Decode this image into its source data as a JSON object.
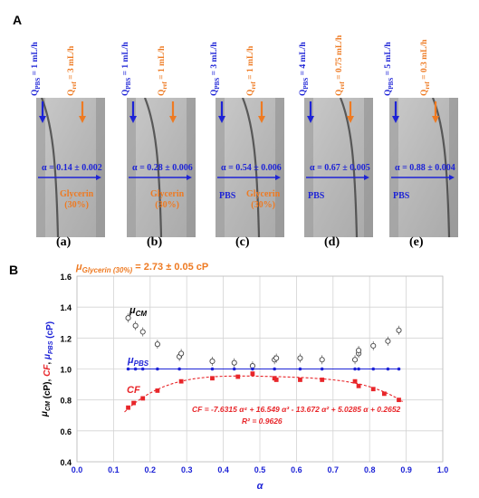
{
  "figure": {
    "panel_a_letter": "A",
    "panel_b_letter": "B"
  },
  "panels": [
    {
      "sub": "(a)",
      "q_pbs": "Q_PBS = 1 mL/h",
      "q_ref": "Q_ref = 3 mL/h",
      "alpha": "α = 0.14 ± 0.002",
      "pbs_label": "",
      "ref_label": "Glycerin\n(30%)"
    },
    {
      "sub": "(b)",
      "q_pbs": "Q_PBS = 1 mL/h",
      "q_ref": "Q_ref = 1 mL/h",
      "alpha": "α = 0.28 ± 0.006",
      "pbs_label": "",
      "ref_label": "Glycerin\n(30%)"
    },
    {
      "sub": "(c)",
      "q_pbs": "Q_PBS = 3 mL/h",
      "q_ref": "Q_ref = 1 mL/h",
      "alpha": "α = 0.54 ± 0.006",
      "pbs_label": "PBS",
      "ref_label": "Glycerin\n(30%)"
    },
    {
      "sub": "(d)",
      "q_pbs": "Q_PBS = 4 mL/h",
      "q_ref": "Q_ref = 0.75 mL/h",
      "alpha": "α = 0.67 ± 0.005",
      "pbs_label": "PBS",
      "ref_label": ""
    },
    {
      "sub": "(e)",
      "q_pbs": "Q_PBS = 5 mL/h",
      "q_ref": "Q_ref = 0.3 mL/h",
      "alpha": "α = 0.88 ± 0.004",
      "pbs_label": "PBS",
      "ref_label": ""
    }
  ],
  "colors": {
    "blue": "#1d23d6",
    "orange": "#ee7a22",
    "red": "#e8262a",
    "black": "#000000"
  },
  "chart_data": {
    "type": "scatter",
    "title": "μGlycerin (30%) = 2.73 ± 0.05 cP",
    "xlabel": "α",
    "ylabel": "μCM (cP), CF, μPBS (cP)",
    "xlim": [
      0.0,
      1.0
    ],
    "ylim": [
      0.4,
      1.6
    ],
    "xticks": [
      "0.0",
      "0.1",
      "0.2",
      "0.3",
      "0.4",
      "0.5",
      "0.6",
      "0.7",
      "0.8",
      "0.9",
      "1.0"
    ],
    "yticks": [
      "0.4",
      "0.6",
      "0.8",
      "1.0",
      "1.2",
      "1.4",
      "1.6"
    ],
    "grid": true,
    "series": [
      {
        "name": "μCM",
        "marker": "open-circle",
        "color": "#555555",
        "points": [
          [
            0.14,
            1.33
          ],
          [
            0.16,
            1.28
          ],
          [
            0.18,
            1.24
          ],
          [
            0.22,
            1.16
          ],
          [
            0.28,
            1.08
          ],
          [
            0.285,
            1.1
          ],
          [
            0.37,
            1.05
          ],
          [
            0.43,
            1.04
          ],
          [
            0.48,
            1.02
          ],
          [
            0.54,
            1.06
          ],
          [
            0.545,
            1.07
          ],
          [
            0.61,
            1.07
          ],
          [
            0.67,
            1.06
          ],
          [
            0.76,
            1.06
          ],
          [
            0.77,
            1.1
          ],
          [
            0.77,
            1.12
          ],
          [
            0.81,
            1.15
          ],
          [
            0.85,
            1.18
          ],
          [
            0.88,
            1.25
          ]
        ]
      },
      {
        "name": "μPBS",
        "marker": "dot-line",
        "color": "#1d23d6",
        "points": [
          [
            0.14,
            1.0
          ],
          [
            0.16,
            1.0
          ],
          [
            0.18,
            1.0
          ],
          [
            0.22,
            1.0
          ],
          [
            0.28,
            1.0
          ],
          [
            0.37,
            1.0
          ],
          [
            0.43,
            1.0
          ],
          [
            0.48,
            1.0
          ],
          [
            0.54,
            1.0
          ],
          [
            0.61,
            1.0
          ],
          [
            0.67,
            1.0
          ],
          [
            0.76,
            1.0
          ],
          [
            0.77,
            1.0
          ],
          [
            0.81,
            1.0
          ],
          [
            0.85,
            1.0
          ],
          [
            0.88,
            1.0
          ]
        ]
      },
      {
        "name": "CF",
        "marker": "filled-square",
        "color": "#e8262a",
        "points": [
          [
            0.14,
            0.75
          ],
          [
            0.155,
            0.78
          ],
          [
            0.18,
            0.81
          ],
          [
            0.22,
            0.86
          ],
          [
            0.285,
            0.92
          ],
          [
            0.37,
            0.94
          ],
          [
            0.44,
            0.95
          ],
          [
            0.48,
            0.97
          ],
          [
            0.54,
            0.94
          ],
          [
            0.545,
            0.93
          ],
          [
            0.61,
            0.93
          ],
          [
            0.67,
            0.93
          ],
          [
            0.76,
            0.92
          ],
          [
            0.77,
            0.89
          ],
          [
            0.81,
            0.87
          ],
          [
            0.84,
            0.84
          ],
          [
            0.88,
            0.8
          ]
        ]
      }
    ],
    "fit": {
      "name": "CF",
      "equation": "CF = -7.6315 α⁴ + 16.549 α³ - 13.672 α² + 5.0285 α + 0.2652",
      "r2": "R² = 0.9626",
      "coefficients": [
        -7.6315,
        16.549,
        -13.672,
        5.0285,
        0.2652
      ],
      "range": [
        0.13,
        0.89
      ]
    }
  }
}
